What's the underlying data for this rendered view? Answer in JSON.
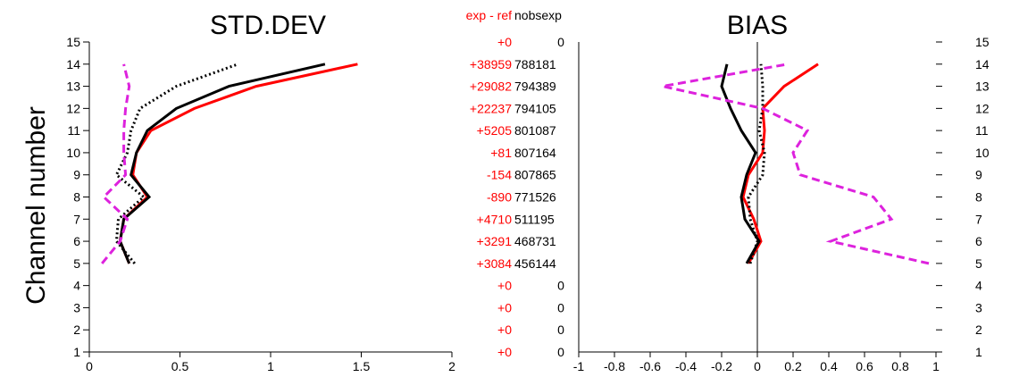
{
  "figure": {
    "ylabel": "Channel number",
    "channels": [
      1,
      2,
      3,
      4,
      5,
      6,
      7,
      8,
      9,
      10,
      11,
      12,
      13,
      14,
      15
    ],
    "colors": {
      "exp": "#ff0000",
      "ref": "#000000",
      "exp_dotted": "#000000",
      "magenta": "#dd22dd"
    }
  },
  "middle_column": {
    "header_diff": "exp - ref",
    "header_nobs": "nobsexp",
    "rows": [
      {
        "channel": 15,
        "diff": "+0",
        "nobs": "0"
      },
      {
        "channel": 14,
        "diff": "+38959",
        "nobs": "788181"
      },
      {
        "channel": 13,
        "diff": "+29082",
        "nobs": "794389"
      },
      {
        "channel": 12,
        "diff": "+22237",
        "nobs": "794105"
      },
      {
        "channel": 11,
        "diff": "+5205",
        "nobs": "801087"
      },
      {
        "channel": 10,
        "diff": "+81",
        "nobs": "807164"
      },
      {
        "channel": 9,
        "diff": "-154",
        "nobs": "807865"
      },
      {
        "channel": 8,
        "diff": "-890",
        "nobs": "771526"
      },
      {
        "channel": 7,
        "diff": "+4710",
        "nobs": "511195"
      },
      {
        "channel": 6,
        "diff": "+3291",
        "nobs": "468731"
      },
      {
        "channel": 5,
        "diff": "+3084",
        "nobs": "456144"
      },
      {
        "channel": 4,
        "diff": "+0",
        "nobs": "0"
      },
      {
        "channel": 3,
        "diff": "+0",
        "nobs": "0"
      },
      {
        "channel": 2,
        "diff": "+0",
        "nobs": "0"
      },
      {
        "channel": 1,
        "diff": "+0",
        "nobs": "0"
      }
    ]
  },
  "chart_data": [
    {
      "type": "line",
      "title": "STD.DEV",
      "xlabel": "",
      "ylabel": "Channel number",
      "xlim": [
        0,
        2
      ],
      "ylim": [
        1,
        15
      ],
      "xticks": [
        "0",
        "0.5",
        "1",
        "1.5",
        "2"
      ],
      "grid": false,
      "series": [
        {
          "style": "red-solid",
          "color": "#ff0000",
          "dash": "none",
          "points": [
            [
              0.22,
              5
            ],
            [
              0.17,
              6
            ],
            [
              0.19,
              7
            ],
            [
              0.32,
              8
            ],
            [
              0.24,
              9
            ],
            [
              0.26,
              10
            ],
            [
              0.34,
              11
            ],
            [
              0.58,
              12
            ],
            [
              0.92,
              13
            ],
            [
              1.48,
              14
            ]
          ]
        },
        {
          "style": "black-solid",
          "color": "#000000",
          "dash": "none",
          "points": [
            [
              0.22,
              5
            ],
            [
              0.17,
              6
            ],
            [
              0.19,
              7
            ],
            [
              0.33,
              8
            ],
            [
              0.23,
              9
            ],
            [
              0.26,
              10
            ],
            [
              0.32,
              11
            ],
            [
              0.48,
              12
            ],
            [
              0.77,
              13
            ],
            [
              1.3,
              14
            ]
          ]
        },
        {
          "style": "black-dotted",
          "color": "#000000",
          "dash": "dotted",
          "points": [
            [
              0.25,
              5
            ],
            [
              0.15,
              6
            ],
            [
              0.16,
              7
            ],
            [
              0.3,
              8
            ],
            [
              0.15,
              9
            ],
            [
              0.21,
              10
            ],
            [
              0.23,
              11
            ],
            [
              0.28,
              12
            ],
            [
              0.48,
              13
            ],
            [
              0.82,
              14
            ]
          ]
        },
        {
          "style": "magenta-dashed",
          "color": "#dd22dd",
          "dash": "dashed",
          "points": [
            [
              0.07,
              5
            ],
            [
              0.17,
              6
            ],
            [
              0.21,
              7
            ],
            [
              0.08,
              8
            ],
            [
              0.2,
              9
            ],
            [
              0.19,
              10
            ],
            [
              0.19,
              11
            ],
            [
              0.2,
              12
            ],
            [
              0.22,
              13
            ],
            [
              0.19,
              14
            ]
          ]
        }
      ]
    },
    {
      "type": "line",
      "title": "BIAS",
      "xlabel": "",
      "ylabel": "",
      "xlim": [
        -1,
        1
      ],
      "ylim": [
        1,
        15
      ],
      "xticks": [
        "-1",
        "-0.8",
        "-0.6",
        "-0.4",
        "-0.2",
        "0",
        "0.2",
        "0.4",
        "0.6",
        "0.8",
        "1"
      ],
      "yticks_right": true,
      "grid": false,
      "zero_line": 0,
      "series": [
        {
          "style": "red-solid",
          "color": "#ff0000",
          "dash": "none",
          "points": [
            [
              -0.05,
              5
            ],
            [
              0.02,
              6
            ],
            [
              -0.02,
              7
            ],
            [
              -0.08,
              8
            ],
            [
              -0.05,
              9
            ],
            [
              0.03,
              10
            ],
            [
              0.04,
              11
            ],
            [
              0.03,
              12
            ],
            [
              0.15,
              13
            ],
            [
              0.34,
              14
            ]
          ]
        },
        {
          "style": "black-solid",
          "color": "#000000",
          "dash": "none",
          "points": [
            [
              -0.06,
              5
            ],
            [
              0.01,
              6
            ],
            [
              -0.07,
              7
            ],
            [
              -0.09,
              8
            ],
            [
              -0.06,
              9
            ],
            [
              -0.01,
              10
            ],
            [
              -0.09,
              11
            ],
            [
              -0.15,
              12
            ],
            [
              -0.2,
              13
            ],
            [
              -0.17,
              14
            ]
          ]
        },
        {
          "style": "black-dotted",
          "color": "#000000",
          "dash": "dotted",
          "points": [
            [
              -0.04,
              5
            ],
            [
              0.0,
              6
            ],
            [
              -0.04,
              7
            ],
            [
              -0.05,
              8
            ],
            [
              0.03,
              9
            ],
            [
              0.04,
              10
            ],
            [
              0.01,
              11
            ],
            [
              0.03,
              12
            ],
            [
              0.03,
              13
            ],
            [
              0.02,
              14
            ]
          ]
        },
        {
          "style": "magenta-dashed",
          "color": "#dd22dd",
          "dash": "dashed",
          "points": [
            [
              0.96,
              5
            ],
            [
              0.41,
              6
            ],
            [
              0.75,
              7
            ],
            [
              0.65,
              8
            ],
            [
              0.24,
              9
            ],
            [
              0.2,
              10
            ],
            [
              0.28,
              11
            ],
            [
              0.03,
              12
            ],
            [
              -0.53,
              13
            ],
            [
              0.17,
              14
            ]
          ]
        }
      ]
    }
  ]
}
